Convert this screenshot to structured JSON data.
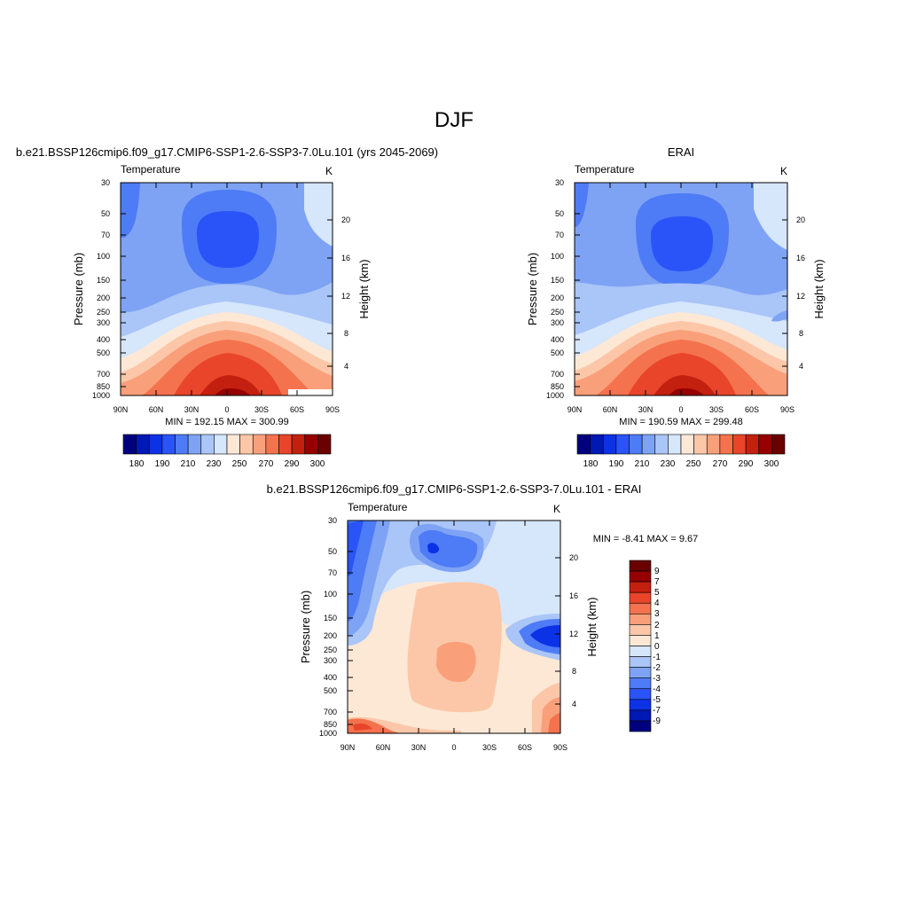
{
  "figure": {
    "title": "DJF",
    "palette": [
      "#00007f",
      "#0018b4",
      "#0c32e6",
      "#2a54f7",
      "#4e7bf6",
      "#7ea3f4",
      "#aac5f7",
      "#d6e6fb",
      "#fde8d6",
      "#fcc7a8",
      "#f9a07a",
      "#f4724e",
      "#e8452a",
      "#c4200f",
      "#960000",
      "#6a0000"
    ],
    "panels": [
      {
        "id": "model",
        "header": "b.e21.BSSP126cmip6.f09_g17.CMIP6-SSP1-2.6-SSP3-7.0Lu.101 (yrs 2045-2069)",
        "left_label": "Temperature",
        "right_label": "K",
        "stats": "MIN = 192.15  MAX = 300.99",
        "colorbar_labels": [
          "180",
          "190",
          "210",
          "230",
          "250",
          "270",
          "290",
          "300"
        ]
      },
      {
        "id": "obs",
        "header": "ERAI",
        "left_label": "Temperature",
        "right_label": "K",
        "stats": "MIN = 190.59  MAX = 299.48",
        "colorbar_labels": [
          "180",
          "190",
          "210",
          "230",
          "250",
          "270",
          "290",
          "300"
        ]
      },
      {
        "id": "diff",
        "header": "b.e21.BSSP126cmip6.f09_g17.CMIP6-SSP1-2.6-SSP3-7.0Lu.101 - ERAI",
        "left_label": "Temperature",
        "right_label": "K",
        "stats": "MIN =  -8.41  MAX =   9.67",
        "colorbar_labels": [
          "9",
          "7",
          "5",
          "4",
          "3",
          "2",
          "1",
          "0",
          "-1",
          "-2",
          "-3",
          "-4",
          "-5",
          "-7",
          "-9"
        ]
      }
    ]
  },
  "chart_data": [
    {
      "type": "heatmap",
      "title": "Temperature",
      "units": "K",
      "xlabel": "",
      "ylabel": "Pressure (mb)",
      "y2label": "Height (km)",
      "xticks": [
        "90N",
        "60N",
        "30N",
        "0",
        "30S",
        "60S",
        "90S"
      ],
      "yticks": [
        "30",
        "50",
        "70",
        "100",
        "150",
        "200",
        "250",
        "300",
        "400",
        "500",
        "700",
        "850",
        "1000"
      ],
      "y2ticks": [
        "20",
        "16",
        "12",
        "8",
        "4"
      ],
      "ylog": true,
      "ylim": [
        1000,
        30
      ],
      "xlim": [
        90,
        -90
      ],
      "min": 192.15,
      "max": 300.99,
      "levels": [
        180,
        185,
        190,
        200,
        210,
        220,
        230,
        240,
        250,
        260,
        270,
        280,
        290,
        295,
        300
      ]
    },
    {
      "type": "heatmap",
      "title": "Temperature",
      "units": "K",
      "xlabel": "",
      "ylabel": "Pressure (mb)",
      "y2label": "Height (km)",
      "xticks": [
        "90N",
        "60N",
        "30N",
        "0",
        "30S",
        "60S",
        "90S"
      ],
      "yticks": [
        "30",
        "50",
        "70",
        "100",
        "150",
        "200",
        "250",
        "300",
        "400",
        "500",
        "700",
        "850",
        "1000"
      ],
      "y2ticks": [
        "20",
        "16",
        "12",
        "8",
        "4"
      ],
      "ylog": true,
      "ylim": [
        1000,
        30
      ],
      "xlim": [
        90,
        -90
      ],
      "min": 190.59,
      "max": 299.48,
      "levels": [
        180,
        185,
        190,
        200,
        210,
        220,
        230,
        240,
        250,
        260,
        270,
        280,
        290,
        295,
        300
      ]
    },
    {
      "type": "heatmap",
      "title": "Temperature",
      "units": "K",
      "xlabel": "",
      "ylabel": "Pressure (mb)",
      "y2label": "Height (km)",
      "xticks": [
        "90N",
        "60N",
        "30N",
        "0",
        "30S",
        "60S",
        "90S"
      ],
      "yticks": [
        "30",
        "50",
        "70",
        "100",
        "150",
        "200",
        "250",
        "300",
        "400",
        "500",
        "700",
        "850",
        "1000"
      ],
      "y2ticks": [
        "20",
        "16",
        "12",
        "8",
        "4"
      ],
      "ylog": true,
      "ylim": [
        1000,
        30
      ],
      "xlim": [
        90,
        -90
      ],
      "min": -8.41,
      "max": 9.67,
      "levels": [
        -9,
        -7,
        -5,
        -4,
        -3,
        -2,
        -1,
        0,
        1,
        2,
        3,
        4,
        5,
        7,
        9
      ]
    }
  ]
}
